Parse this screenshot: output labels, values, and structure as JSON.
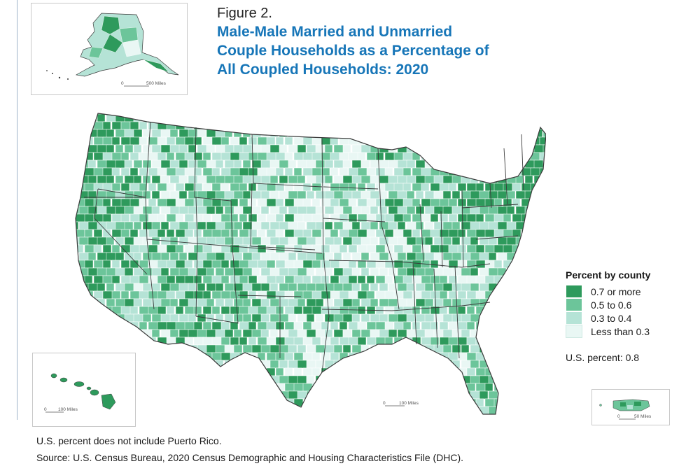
{
  "figure": {
    "label": "Figure 2.",
    "title_lines": [
      "Male-Male Married and Unmarried",
      "Couple Households as a Percentage of",
      "All Coupled Households: 2020"
    ]
  },
  "legend": {
    "title": "Percent by county",
    "items": [
      {
        "label": "0.7 or more",
        "color": "#2e9a5c"
      },
      {
        "label": "0.5 to 0.6",
        "color": "#6cc59a"
      },
      {
        "label": "0.3 to 0.4",
        "color": "#b5e3d6"
      },
      {
        "label": "Less than 0.3",
        "color": "#e9f7f4"
      }
    ]
  },
  "us_percent": "U.S. percent: 0.8",
  "scale_bars": {
    "alaska": {
      "zero": "0",
      "label": "500 Miles"
    },
    "conus": {
      "zero": "0",
      "label": "100 Miles"
    },
    "hawaii": {
      "zero": "0",
      "label": "100 Miles"
    },
    "puerto_rico": {
      "zero": "0",
      "label": "50 Miles"
    }
  },
  "notes": {
    "line1": "U.S. percent does not include Puerto Rico.",
    "line2": "Source: U.S. Census Bureau, 2020 Census Demographic and Housing Characteristics File (DHC)."
  },
  "colors": {
    "dark": "#2e9a5c",
    "medium": "#6cc59a",
    "light": "#b5e3d6",
    "lightest": "#e9f7f4",
    "title_blue": "#1776b8",
    "border": "#3a3a3a"
  }
}
